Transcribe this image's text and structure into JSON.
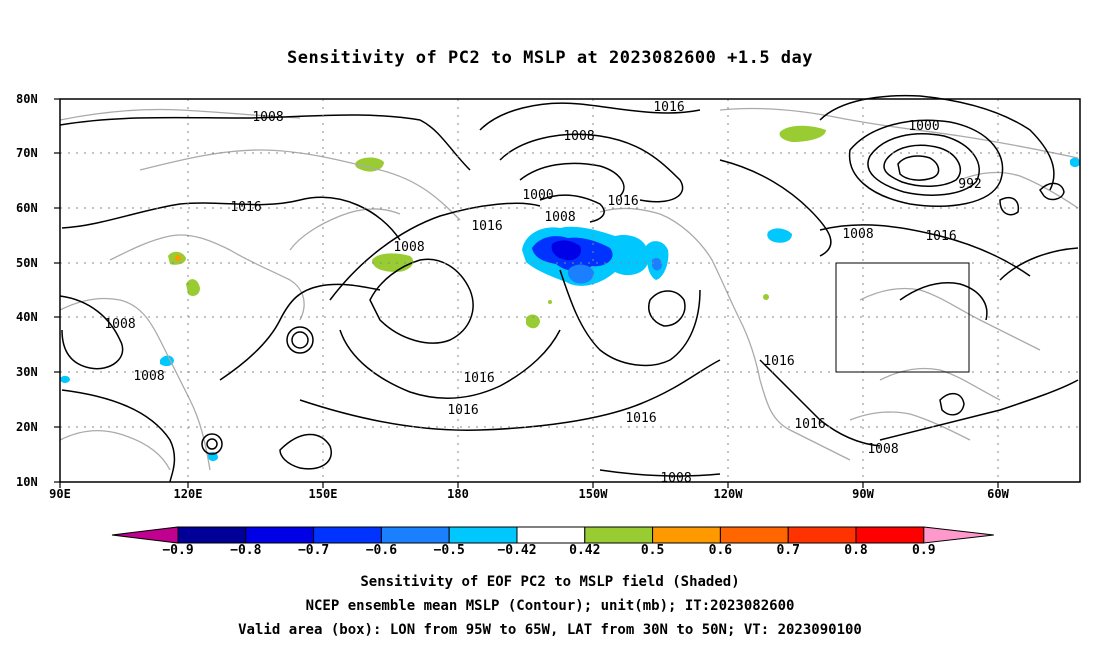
{
  "title": "Sensitivity of PC2 to MSLP at 2023082600 +1.5 day",
  "map": {
    "lat_ticks": [
      "80N",
      "70N",
      "60N",
      "50N",
      "40N",
      "30N",
      "20N",
      "10N"
    ],
    "lon_ticks": [
      "90E",
      "120E",
      "150E",
      "180",
      "150W",
      "120W",
      "90W",
      "60W"
    ],
    "contour_labels": [
      {
        "id": "c1",
        "text": "1008"
      },
      {
        "id": "c2",
        "text": "1016"
      },
      {
        "id": "c3",
        "text": "1016"
      },
      {
        "id": "c4",
        "text": "1008"
      },
      {
        "id": "c5",
        "text": "1000"
      },
      {
        "id": "c6",
        "text": "1008"
      },
      {
        "id": "c7",
        "text": "1016"
      },
      {
        "id": "c8",
        "text": "1016"
      },
      {
        "id": "c9",
        "text": "1008"
      },
      {
        "id": "c10",
        "text": "1000"
      },
      {
        "id": "c11",
        "text": "992"
      },
      {
        "id": "c12",
        "text": "1008"
      },
      {
        "id": "c13",
        "text": "1016"
      },
      {
        "id": "c14",
        "text": "1008"
      },
      {
        "id": "c15",
        "text": "1008"
      },
      {
        "id": "c16",
        "text": "1016"
      },
      {
        "id": "c17",
        "text": "1016"
      },
      {
        "id": "c18",
        "text": "1016"
      },
      {
        "id": "c19",
        "text": "1016"
      },
      {
        "id": "c20",
        "text": "1016"
      },
      {
        "id": "c21",
        "text": "1008"
      },
      {
        "id": "c22",
        "text": "1008"
      }
    ],
    "valid_box": {
      "lon_from": "95W",
      "lon_to": "65W",
      "lat_from": "30N",
      "lat_to": "50N"
    }
  },
  "colorbar": {
    "labels": [
      "−0.9",
      "−0.8",
      "−0.7",
      "−0.6",
      "−0.5",
      "−0.42",
      "0.42",
      "0.5",
      "0.6",
      "0.7",
      "0.8",
      "0.9"
    ],
    "colors": [
      "#000099",
      "#0000e6",
      "#0033ff",
      "#1a80ff",
      "#00c8ff",
      "#ffffff",
      "#99cc33",
      "#ff9900",
      "#ff6600",
      "#ff3300",
      "#ff0000"
    ],
    "low_end_color": "#c0008f",
    "high_end_color": "#ff99cc"
  },
  "captions": {
    "line1": "Sensitivity of EOF PC2 to MSLP field (Shaded)",
    "line2": "NCEP ensemble mean MSLP (Contour); unit(mb); IT:2023082600",
    "line3": "Valid area (box): LON from 95W to 65W, LAT from 30N to 50N; VT: 2023090100"
  }
}
